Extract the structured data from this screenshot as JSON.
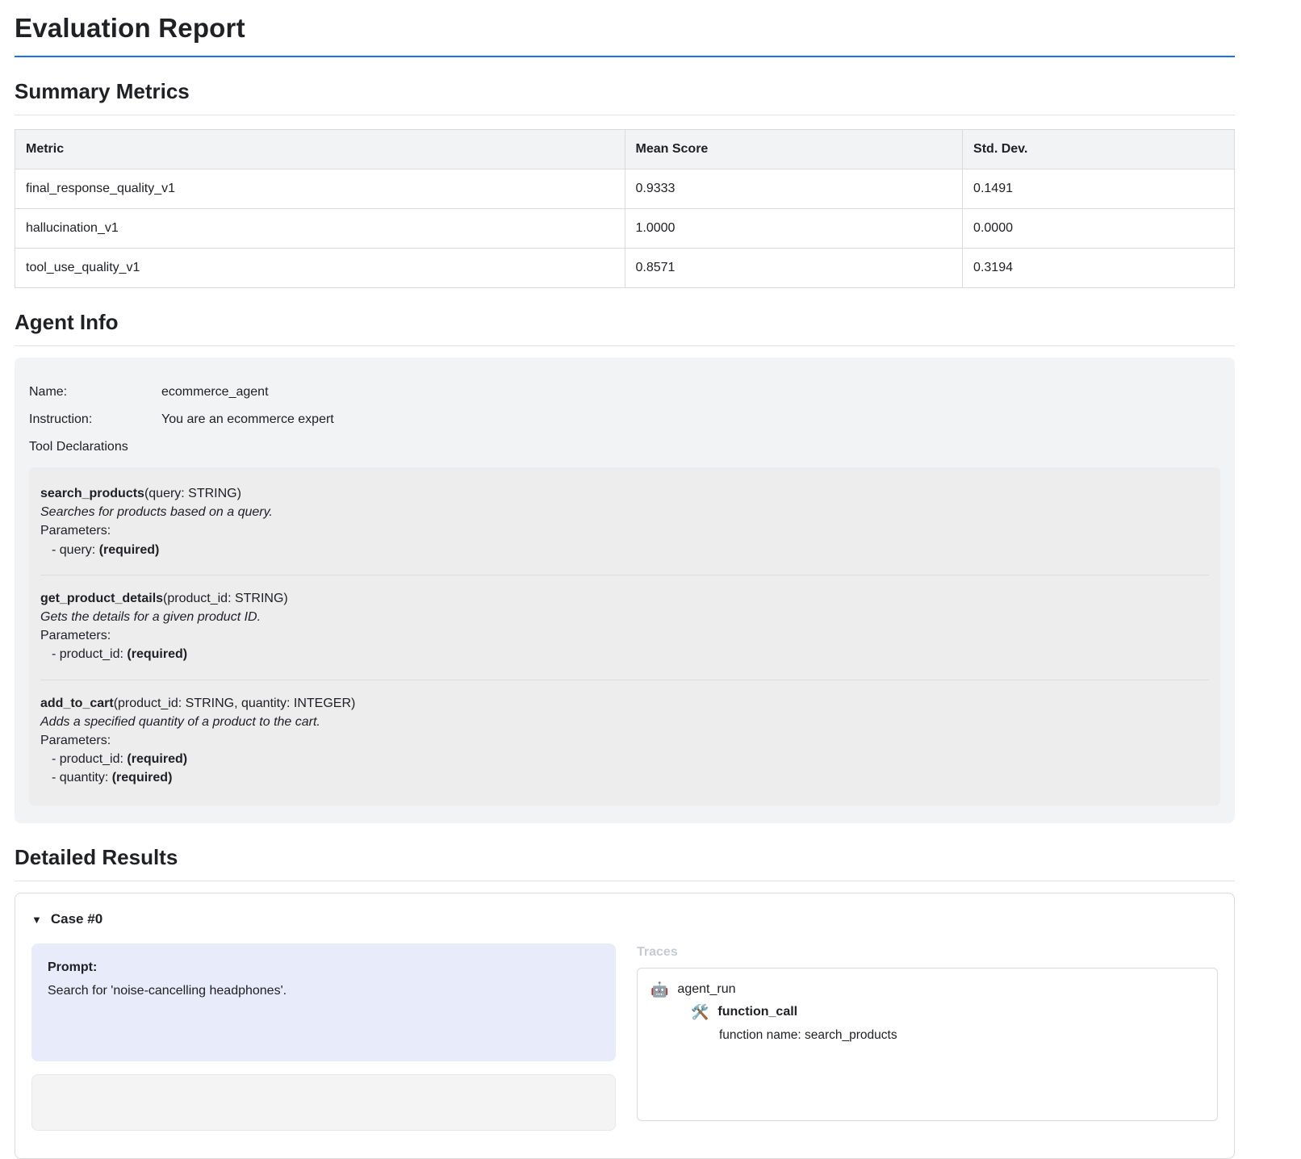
{
  "page": {
    "title": "Evaluation Report"
  },
  "summary": {
    "heading": "Summary Metrics",
    "table": {
      "headers": [
        "Metric",
        "Mean Score",
        "Std. Dev."
      ],
      "rows": [
        [
          "final_response_quality_v1",
          "0.9333",
          "0.1491"
        ],
        [
          "hallucination_v1",
          "1.0000",
          "0.0000"
        ],
        [
          "tool_use_quality_v1",
          "0.8571",
          "0.3194"
        ]
      ]
    }
  },
  "agent_info": {
    "heading": "Agent Info",
    "name_label": "Name:",
    "name_value": "ecommerce_agent",
    "instruction_label": "Instruction:",
    "instruction_value": "You are an ecommerce expert",
    "tool_declarations_label": "Tool Declarations",
    "tools": [
      {
        "name": "search_products",
        "signature": "(query: STRING)",
        "description": "Searches for products based on a query.",
        "parameters_label": "Parameters:",
        "params": [
          {
            "name": "- query:",
            "required": "(required)"
          }
        ]
      },
      {
        "name": "get_product_details",
        "signature": "(product_id: STRING)",
        "description": "Gets the details for a given product ID.",
        "parameters_label": "Parameters:",
        "params": [
          {
            "name": "- product_id:",
            "required": "(required)"
          }
        ]
      },
      {
        "name": "add_to_cart",
        "signature": "(product_id: STRING, quantity: INTEGER)",
        "description": "Adds a specified quantity of a product to the cart.",
        "parameters_label": "Parameters:",
        "params": [
          {
            "name": "- product_id:",
            "required": "(required)"
          },
          {
            "name": "- quantity:",
            "required": "(required)"
          }
        ]
      }
    ]
  },
  "detailed_results": {
    "heading": "Detailed Results",
    "case0": {
      "collapse_icon": "▼",
      "label": "Case #0",
      "prompt_label": "Prompt:",
      "prompt_text": "Search for 'noise-cancelling headphones'.",
      "traces_label": "Traces",
      "trace": {
        "agent_icon": "🤖",
        "agent_label": "agent_run",
        "call_icon": "🛠️",
        "call_label": "function_call",
        "call_detail": "function name: search_products"
      }
    }
  }
}
